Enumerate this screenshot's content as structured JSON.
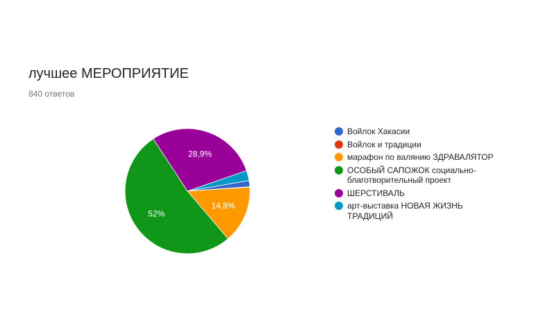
{
  "question": {
    "title": "лучшее МЕРОПРИЯТИЕ",
    "responses": "840 ответов"
  },
  "chart_data": {
    "type": "pie",
    "categories": [
      "Войлок Хакасии",
      "Войлок и традиции",
      "марафон по валянию ЗДРАВАЛЯТОР",
      "ОСОБЫЙ САПОЖОК социально-благотворительный проект",
      "ШЕРСТИВАЛЬ",
      "арт-выставка НОВАЯ ЖИЗНЬ ТРАДИЦИЙ"
    ],
    "values": [
      1.6,
      0.1,
      14.8,
      52,
      28.9,
      2.6
    ],
    "slice_labels": [
      "",
      "",
      "14,8%",
      "52%",
      "28,9%",
      ""
    ],
    "colors": [
      "#3366cc",
      "#dc3912",
      "#ff9900",
      "#109618",
      "#990099",
      "#0099c6"
    ],
    "title": "",
    "legend_position": "right"
  }
}
